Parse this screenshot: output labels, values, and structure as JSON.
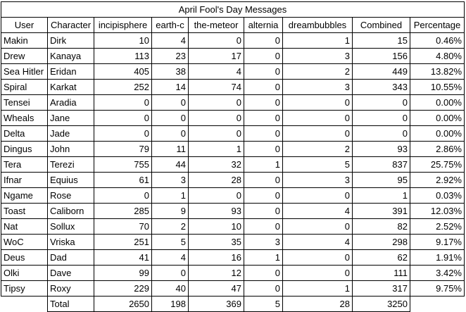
{
  "title": "April Fool's Day Messages",
  "headers": [
    "User",
    "Character",
    "incipisphere",
    "earth-c",
    "the-meteor",
    "alternia",
    "dreambubbles",
    "Combined",
    "Percentage"
  ],
  "rows": [
    [
      "Makin",
      "Dirk",
      "10",
      "4",
      "0",
      "0",
      "1",
      "15",
      "0.46%"
    ],
    [
      "Drew",
      "Kanaya",
      "113",
      "23",
      "17",
      "0",
      "3",
      "156",
      "4.80%"
    ],
    [
      "Sea Hitler",
      "Eridan",
      "405",
      "38",
      "4",
      "0",
      "2",
      "449",
      "13.82%"
    ],
    [
      "Spiral",
      "Karkat",
      "252",
      "14",
      "74",
      "0",
      "3",
      "343",
      "10.55%"
    ],
    [
      "Tensei",
      "Aradia",
      "0",
      "0",
      "0",
      "0",
      "0",
      "0",
      "0.00%"
    ],
    [
      "Wheals",
      "Jane",
      "0",
      "0",
      "0",
      "0",
      "0",
      "0",
      "0.00%"
    ],
    [
      "Delta",
      "Jade",
      "0",
      "0",
      "0",
      "0",
      "0",
      "0",
      "0.00%"
    ],
    [
      "Dingus",
      "John",
      "79",
      "11",
      "1",
      "0",
      "2",
      "93",
      "2.86%"
    ],
    [
      "Tera",
      "Terezi",
      "755",
      "44",
      "32",
      "1",
      "5",
      "837",
      "25.75%"
    ],
    [
      "Ifnar",
      "Equius",
      "61",
      "3",
      "28",
      "0",
      "3",
      "95",
      "2.92%"
    ],
    [
      "Ngame",
      "Rose",
      "0",
      "1",
      "0",
      "0",
      "0",
      "1",
      "0.03%"
    ],
    [
      "Toast",
      "Caliborn",
      "285",
      "9",
      "93",
      "0",
      "4",
      "391",
      "12.03%"
    ],
    [
      "Nat",
      "Sollux",
      "70",
      "2",
      "10",
      "0",
      "0",
      "82",
      "2.52%"
    ],
    [
      "WoC",
      "Vriska",
      "251",
      "5",
      "35",
      "3",
      "4",
      "298",
      "9.17%"
    ],
    [
      "Deus",
      "Dad",
      "41",
      "4",
      "16",
      "1",
      "0",
      "62",
      "1.91%"
    ],
    [
      "Olki",
      "Dave",
      "99",
      "0",
      "12",
      "0",
      "0",
      "111",
      "3.42%"
    ],
    [
      "Tipsy",
      "Roxy",
      "229",
      "40",
      "47",
      "0",
      "1",
      "317",
      "9.75%"
    ]
  ],
  "total": {
    "label": "Total",
    "values": [
      "2650",
      "198",
      "369",
      "5",
      "28",
      "3250"
    ]
  }
}
